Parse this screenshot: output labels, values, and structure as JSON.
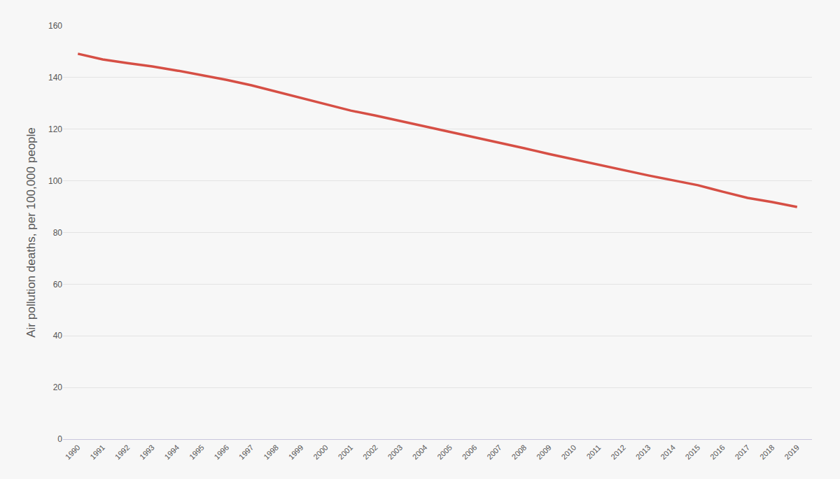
{
  "chart_data": {
    "type": "line",
    "ylabel": "Air pollution deaths, per 100,000 people",
    "categories": [
      "1990",
      "1991",
      "1992",
      "1993",
      "1994",
      "1995",
      "1996",
      "1997",
      "1998",
      "1999",
      "2000",
      "2001",
      "2002",
      "2003",
      "2004",
      "2005",
      "2006",
      "2007",
      "2008",
      "2009",
      "2010",
      "2011",
      "2012",
      "2013",
      "2014",
      "2015",
      "2016",
      "2017",
      "2018",
      "2019"
    ],
    "values": [
      149.2,
      147.0,
      145.6,
      144.3,
      142.7,
      141.0,
      139.1,
      137.0,
      134.6,
      132.2,
      129.8,
      127.2,
      125.3,
      123.2,
      121.0,
      119.1,
      117.0,
      114.8,
      112.6,
      110.4,
      108.3,
      106.4,
      104.2,
      102.1,
      100.2,
      98.3,
      95.8,
      93.4,
      91.8,
      89.9
    ],
    "color": "#d64f45",
    "ylim": [
      0,
      160
    ],
    "yticks": [
      0,
      20,
      40,
      60,
      80,
      100,
      120,
      140,
      160
    ],
    "grid": true
  }
}
